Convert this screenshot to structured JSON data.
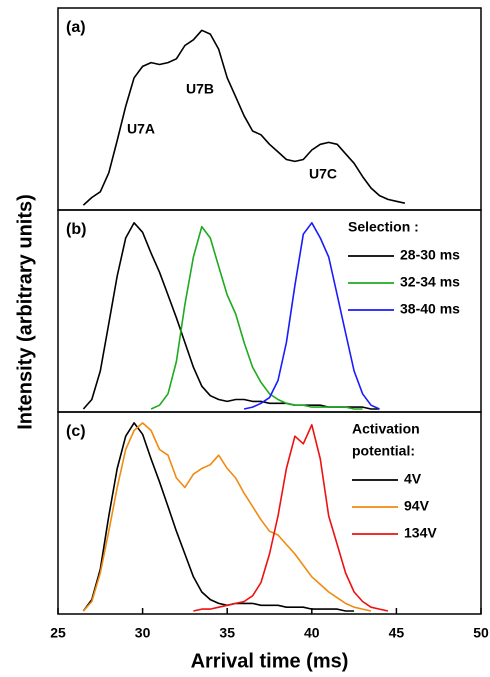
{
  "chart_data": [
    {
      "type": "line",
      "label": "(a)",
      "ylabel": "Intensity (arbitrary units)",
      "annotations": [
        "U7A",
        "U7B",
        "U7C"
      ],
      "xlim": [
        25,
        50
      ],
      "ylim": [
        0,
        1
      ],
      "x": [
        26,
        26.5,
        27,
        27.5,
        28,
        28.5,
        29,
        29.5,
        30,
        30.5,
        31,
        31.5,
        32,
        32.5,
        33,
        33.5,
        34,
        34.5,
        35,
        35.5,
        36,
        36.5,
        37,
        37.5,
        38,
        38.5,
        39,
        39.5,
        40,
        40.5,
        41,
        41.5,
        42,
        42.5,
        43,
        43.5,
        44,
        44.5,
        45,
        45.5,
        46
      ],
      "series": [
        {
          "color": "#000000",
          "values": [
            null,
            0.01,
            0.05,
            0.08,
            0.18,
            0.35,
            0.53,
            0.68,
            0.74,
            0.76,
            0.75,
            0.76,
            0.78,
            0.85,
            0.88,
            0.93,
            0.91,
            0.83,
            0.68,
            0.58,
            0.48,
            0.4,
            0.38,
            0.33,
            0.29,
            0.25,
            0.24,
            0.25,
            0.3,
            0.33,
            0.34,
            0.33,
            0.28,
            0.23,
            0.16,
            0.1,
            0.06,
            0.04,
            0.03,
            0.02,
            null
          ]
        }
      ]
    },
    {
      "type": "line",
      "label": "(b)",
      "legend_title": [
        "Selection :"
      ],
      "xlim": [
        25,
        50
      ],
      "ylim": [
        0,
        1
      ],
      "x": [
        26,
        26.5,
        27,
        27.5,
        28,
        28.5,
        29,
        29.5,
        30,
        30.5,
        31,
        31.5,
        32,
        32.5,
        33,
        33.5,
        34,
        34.5,
        35,
        35.5,
        36,
        36.5,
        37,
        37.5,
        38,
        38.5,
        39,
        39.5,
        40,
        40.5,
        41,
        41.5,
        42,
        42.5,
        43,
        43.5,
        44,
        44.5,
        45,
        45.5,
        46
      ],
      "series": [
        {
          "name": "28-30 ms",
          "color": "#000000",
          "values": [
            null,
            0,
            0.05,
            0.2,
            0.45,
            0.7,
            0.9,
            0.98,
            0.93,
            0.82,
            0.72,
            0.6,
            0.48,
            0.35,
            0.22,
            0.12,
            0.07,
            0.05,
            0.04,
            0.05,
            0.05,
            0.04,
            0.04,
            0.03,
            0.03,
            0.03,
            0.02,
            0.02,
            0.02,
            0.02,
            0.01,
            0.01,
            0.01,
            0.01,
            0.01,
            0,
            0,
            null,
            null,
            null,
            null
          ]
        },
        {
          "name": "32-34 ms",
          "color": "#1faa1f",
          "values": [
            null,
            null,
            null,
            null,
            null,
            null,
            null,
            null,
            null,
            0,
            0.02,
            0.08,
            0.25,
            0.55,
            0.8,
            0.96,
            0.9,
            0.75,
            0.6,
            0.5,
            0.35,
            0.22,
            0.14,
            0.08,
            0.05,
            0.03,
            0.02,
            0.02,
            0.01,
            0.01,
            0.01,
            0.01,
            0.01,
            0,
            0,
            null,
            null,
            null,
            null,
            null,
            null
          ]
        },
        {
          "name": "38-40 ms",
          "color": "#1a1aff",
          "values": [
            null,
            null,
            null,
            null,
            null,
            null,
            null,
            null,
            null,
            null,
            null,
            null,
            null,
            null,
            null,
            null,
            null,
            null,
            null,
            null,
            0,
            0.01,
            0.03,
            0.06,
            0.15,
            0.35,
            0.65,
            0.92,
            0.98,
            0.9,
            0.8,
            0.6,
            0.4,
            0.2,
            0.08,
            0.02,
            0,
            null,
            null,
            null,
            null
          ]
        }
      ]
    },
    {
      "type": "line",
      "label": "(c)",
      "legend_title": [
        "Activation",
        "potential:"
      ],
      "xlabel": "Arrival time (ms)",
      "xlim": [
        25,
        50
      ],
      "ylim": [
        0,
        1
      ],
      "xticks": [
        25,
        30,
        35,
        40,
        45,
        50
      ],
      "x": [
        26,
        26.5,
        27,
        27.5,
        28,
        28.5,
        29,
        29.5,
        30,
        30.5,
        31,
        31.5,
        32,
        32.5,
        33,
        33.5,
        34,
        34.5,
        35,
        35.5,
        36,
        36.5,
        37,
        37.5,
        38,
        38.5,
        39,
        39.5,
        40,
        40.5,
        41,
        41.5,
        42,
        42.5,
        43,
        43.5,
        44,
        44.5,
        45,
        45.5,
        46
      ],
      "series": [
        {
          "name": "4V",
          "color": "#000000",
          "values": [
            null,
            0,
            0.06,
            0.22,
            0.5,
            0.75,
            0.92,
            0.99,
            0.93,
            0.8,
            0.68,
            0.55,
            0.42,
            0.3,
            0.18,
            0.1,
            0.06,
            0.04,
            0.03,
            0.04,
            0.04,
            0.04,
            0.03,
            0.03,
            0.03,
            0.02,
            0.02,
            0.02,
            0.01,
            0.01,
            0.01,
            0.01,
            0,
            0,
            null,
            null,
            null,
            null,
            null,
            null,
            null
          ]
        },
        {
          "name": "94V",
          "color": "#f08a10",
          "values": [
            null,
            0,
            0.05,
            0.2,
            0.42,
            0.65,
            0.85,
            0.95,
            0.99,
            0.95,
            0.85,
            0.82,
            0.7,
            0.65,
            0.72,
            0.75,
            0.77,
            0.82,
            0.75,
            0.7,
            0.62,
            0.55,
            0.48,
            0.42,
            0.4,
            0.35,
            0.3,
            0.24,
            0.18,
            0.14,
            0.1,
            0.07,
            0.04,
            0.02,
            0.01,
            0,
            null,
            null,
            null,
            null,
            null
          ]
        },
        {
          "name": "134V",
          "color": "#ee1111",
          "values": [
            null,
            null,
            null,
            null,
            null,
            null,
            null,
            null,
            null,
            null,
            null,
            null,
            null,
            null,
            0,
            0.01,
            0.01,
            0.02,
            0.03,
            0.04,
            0.05,
            0.08,
            0.15,
            0.3,
            0.5,
            0.75,
            0.92,
            0.88,
            0.98,
            0.8,
            0.5,
            0.35,
            0.2,
            0.1,
            0.05,
            0.02,
            0.01,
            0,
            null,
            null,
            null
          ]
        }
      ]
    }
  ]
}
